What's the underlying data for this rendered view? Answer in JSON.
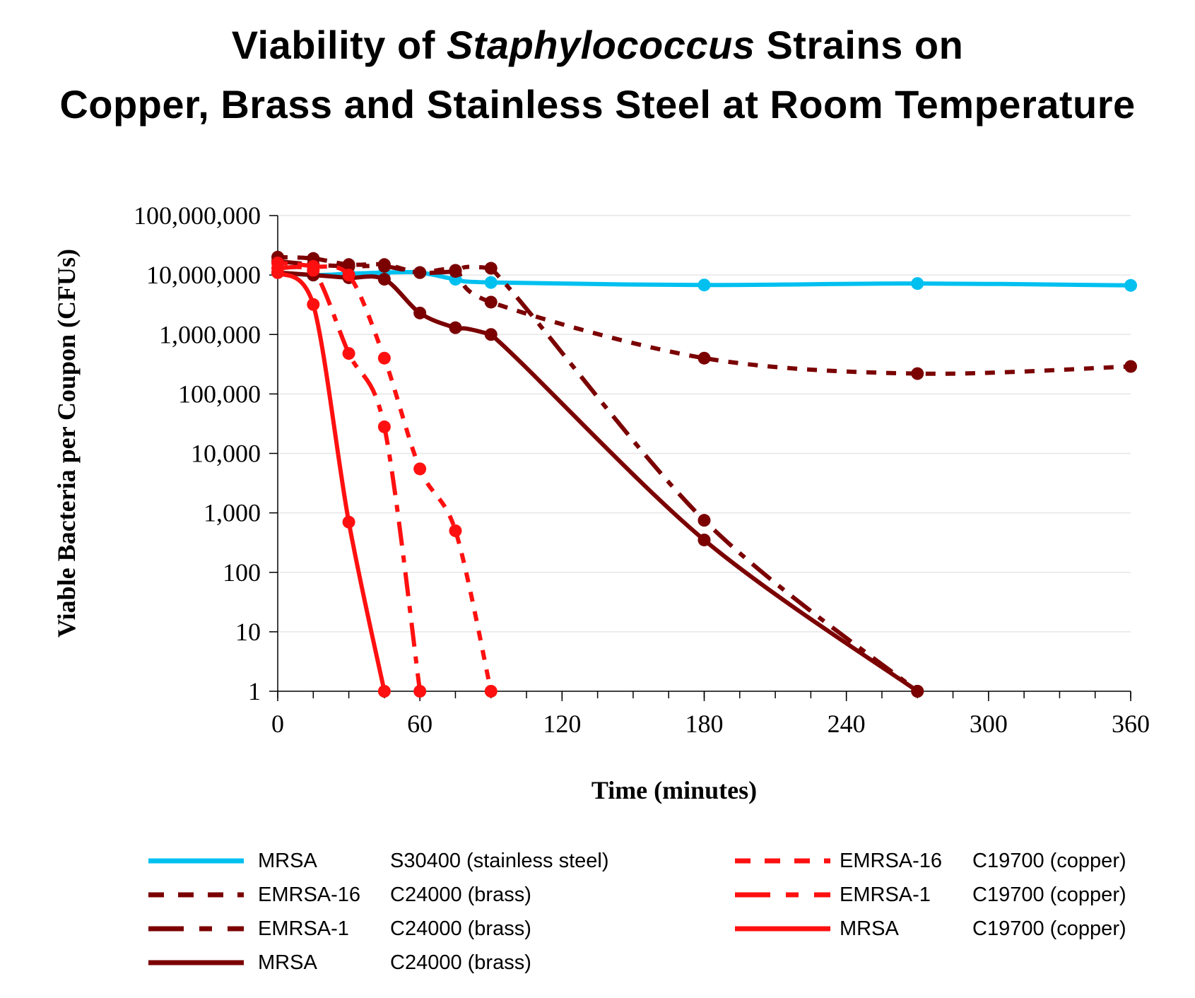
{
  "title": {
    "line1_pre": "Viability of ",
    "line1_italic": "Staphylococcus",
    "line1_post": " Strains on",
    "line2": "Copper, Brass and Stainless Steel at Room Temperature"
  },
  "colors": {
    "stainless": "#00c0f0",
    "brass": "#7b0000",
    "copper": "#ff1010",
    "grid": "#e6e6e6",
    "axis": "#000000"
  },
  "chart_data": {
    "type": "line",
    "xlabel": "Time (minutes)",
    "ylabel": "Viable Bacteria per Coupon (CFUs)",
    "xlim": [
      0,
      360
    ],
    "xticks": [
      0,
      60,
      120,
      180,
      240,
      300,
      360
    ],
    "y_scale": "log",
    "ylim": [
      1,
      100000000
    ],
    "yticks": [
      1,
      10,
      100,
      1000,
      10000,
      100000,
      1000000,
      10000000,
      100000000
    ],
    "ytick_labels": [
      "1",
      "10",
      "100",
      "1,000",
      "10,000",
      "100,000",
      "1,000,000",
      "10,000,000",
      "100,000,000"
    ],
    "grid": "horizontal",
    "legend_position": "bottom",
    "series": [
      {
        "strain": "MRSA",
        "metal": "S30400 (stainless steel)",
        "color": "#00c0f0",
        "dash": "solid",
        "points": [
          [
            0,
            11000000
          ],
          [
            15,
            10000000
          ],
          [
            30,
            10500000
          ],
          [
            45,
            11000000
          ],
          [
            60,
            11000000
          ],
          [
            75,
            8500000
          ],
          [
            90,
            7500000
          ],
          [
            180,
            6800000
          ],
          [
            270,
            7200000
          ],
          [
            360,
            6700000
          ]
        ]
      },
      {
        "strain": "EMRSA-16",
        "metal": "C24000 (brass)",
        "color": "#7b0000",
        "dash": "dotted",
        "points": [
          [
            0,
            20000000
          ],
          [
            15,
            19000000
          ],
          [
            30,
            15000000
          ],
          [
            45,
            15000000
          ],
          [
            60,
            11000000
          ],
          [
            75,
            12000000
          ],
          [
            90,
            3500000
          ],
          [
            180,
            400000
          ],
          [
            270,
            220000
          ],
          [
            360,
            290000
          ]
        ]
      },
      {
        "strain": "EMRSA-1",
        "metal": "C24000 (brass)",
        "color": "#7b0000",
        "dash": "dashdot",
        "points": [
          [
            0,
            17000000
          ],
          [
            15,
            15000000
          ],
          [
            30,
            14000000
          ],
          [
            45,
            14000000
          ],
          [
            60,
            11000000
          ],
          [
            75,
            11500000
          ],
          [
            90,
            13000000
          ],
          [
            180,
            750
          ],
          [
            270,
            1
          ]
        ]
      },
      {
        "strain": "MRSA",
        "metal": "C24000 (brass)",
        "color": "#7b0000",
        "dash": "solid",
        "points": [
          [
            0,
            11000000
          ],
          [
            15,
            10000000
          ],
          [
            30,
            9000000
          ],
          [
            45,
            8500000
          ],
          [
            60,
            2300000
          ],
          [
            75,
            1300000
          ],
          [
            90,
            1000000
          ],
          [
            180,
            350
          ],
          [
            270,
            1
          ]
        ]
      },
      {
        "strain": "EMRSA-16",
        "metal": "C19700 (copper)",
        "color": "#ff1010",
        "dash": "dotted",
        "points": [
          [
            0,
            16000000
          ],
          [
            15,
            14000000
          ],
          [
            30,
            10000000
          ],
          [
            45,
            400000
          ],
          [
            60,
            5500
          ],
          [
            75,
            500
          ],
          [
            90,
            1
          ]
        ]
      },
      {
        "strain": "EMRSA-1",
        "metal": "C19700 (copper)",
        "color": "#ff1010",
        "dash": "dashdot",
        "points": [
          [
            0,
            13000000
          ],
          [
            15,
            12000000
          ],
          [
            30,
            480000
          ],
          [
            45,
            28000
          ],
          [
            60,
            1
          ]
        ]
      },
      {
        "strain": "MRSA",
        "metal": "C19700 (copper)",
        "color": "#ff1010",
        "dash": "solid",
        "points": [
          [
            0,
            11000000
          ],
          [
            15,
            3200000
          ],
          [
            30,
            700
          ],
          [
            45,
            1
          ]
        ]
      }
    ]
  },
  "legend": {
    "left": [
      {
        "strain": "MRSA",
        "metal": "S30400 (stainless steel)"
      },
      {
        "strain": "EMRSA-16",
        "metal": "C24000 (brass)"
      },
      {
        "strain": "EMRSA-1",
        "metal": "C24000 (brass)"
      },
      {
        "strain": "MRSA",
        "metal": "C24000 (brass)"
      }
    ],
    "right": [
      {
        "strain": "EMRSA-16",
        "metal": "C19700 (copper)"
      },
      {
        "strain": "EMRSA-1",
        "metal": "C19700 (copper)"
      },
      {
        "strain": "MRSA",
        "metal": "C19700 (copper)"
      }
    ]
  }
}
